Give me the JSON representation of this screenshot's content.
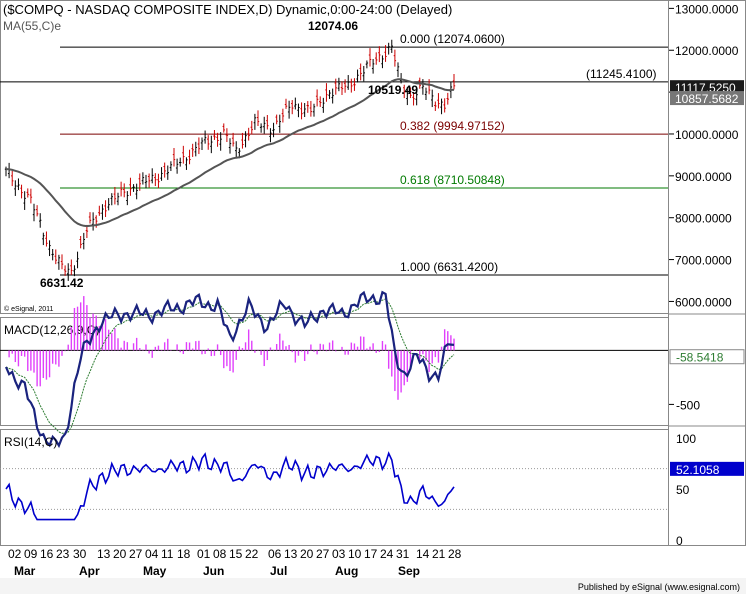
{
  "header": {
    "symbol_title": "($COMPQ - NASDAQ COMPOSITE INDEX,D) Dynamic,0:00-24:00 (Delayed)",
    "ma_label": "MA(55,C)e",
    "copyright": "© eSignal, 2011",
    "publisher": "Published by eSignal (www.esignal.com)"
  },
  "chart_data": [
    {
      "type": "candlestick",
      "panel": "price",
      "y_scale": "linear",
      "ylim": [
        5700,
        13200
      ],
      "y_ticks": [
        {
          "value": 13000,
          "label": "13000.0000"
        },
        {
          "value": 12000,
          "label": "12000.0000"
        },
        {
          "value": 11000,
          "label": "11000.0000"
        },
        {
          "value": 10000,
          "label": "10000.0000"
        },
        {
          "value": 9000,
          "label": "9000.0000"
        },
        {
          "value": 8000,
          "label": "8000.0000"
        },
        {
          "value": 7000,
          "label": "7000.0000"
        },
        {
          "value": 6000,
          "label": "6000.0000"
        }
      ],
      "value_tags": [
        {
          "value": 11117.525,
          "label": "11117.5250",
          "style": "dark"
        },
        {
          "value": 10857.5682,
          "label": "10857.5682",
          "style": "grey"
        }
      ],
      "fib_levels": [
        {
          "value": 12074.06,
          "label": "0.000 (12074.0600)",
          "color": "#000000"
        },
        {
          "value": 11245.41,
          "label": "(11245.4100)",
          "color": "#000000"
        },
        {
          "value": 9994.97152,
          "label": "0.382 (9994.97152)",
          "color": "#7a0000"
        },
        {
          "value": 8710.50848,
          "label": "0.618 (8710.50848)",
          "color": "#007a00"
        },
        {
          "value": 6631.42,
          "label": "1.000 (6631.4200)",
          "color": "#000000"
        }
      ],
      "annotations": [
        {
          "label": "12074.06",
          "value": 12074.06
        },
        {
          "label": "10519.49",
          "value": 10519.49
        },
        {
          "label": "6631.42",
          "value": 6631.42
        }
      ],
      "x_tick_labels": [
        "02",
        "09",
        "16",
        "23",
        "30",
        "13",
        "20",
        "27",
        "04",
        "11",
        "18",
        "01",
        "08",
        "15",
        "22",
        "06",
        "13",
        "20",
        "27",
        "03",
        "10",
        "17",
        "24",
        "31",
        "14",
        "21",
        "28"
      ],
      "month_labels": [
        "Mar",
        "Apr",
        "May",
        "Jun",
        "Jul",
        "Aug",
        "Sep"
      ],
      "series": [
        {
          "name": "MA(55,C)e",
          "kind": "line",
          "color": "#555555"
        }
      ]
    },
    {
      "type": "line",
      "panel": "macd",
      "title": "MACD(12,26,9,C)",
      "ylim": [
        -700,
        300
      ],
      "y_ticks": [
        {
          "value": -500,
          "label": "-500"
        }
      ],
      "value_tags": [
        {
          "value": -58.5418,
          "label": "-58.5418",
          "style": "white"
        }
      ],
      "series": [
        {
          "name": "MACD",
          "color": "#1a237e"
        },
        {
          "name": "Signal",
          "color": "#2e7d32"
        },
        {
          "name": "Histogram",
          "color": "#e040fb"
        }
      ]
    },
    {
      "type": "line",
      "panel": "rsi",
      "title": "RSI(14,C)",
      "ylim": [
        0,
        100
      ],
      "y_ticks": [
        {
          "value": 100,
          "label": "100"
        },
        {
          "value": 50,
          "label": "50"
        },
        {
          "value": 0,
          "label": "0"
        }
      ],
      "value_tags": [
        {
          "value": 52.1058,
          "label": "52.1058",
          "style": "blue"
        }
      ],
      "series": [
        {
          "name": "RSI",
          "color": "#0000cc"
        }
      ]
    }
  ]
}
